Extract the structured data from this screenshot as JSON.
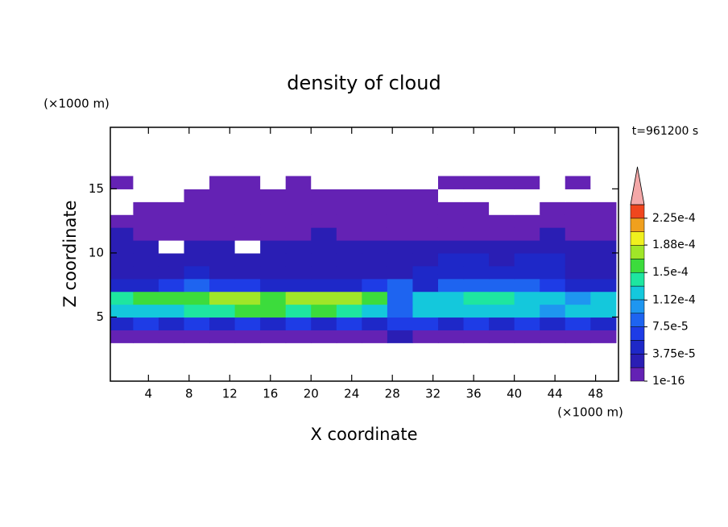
{
  "chart_data": {
    "type": "contour",
    "title": "density of cloud",
    "x_label": "X coordinate",
    "y_label": "Z coordinate",
    "x_unit": "(×1000 m)",
    "y_unit": "(×1000 m)",
    "time_label": "t=961200 s",
    "xlim": [
      0.25,
      50.25
    ],
    "ylim": [
      0,
      19.8
    ],
    "xticks": [
      4,
      8,
      12,
      16,
      20,
      24,
      28,
      32,
      36,
      40,
      44,
      48
    ],
    "yticks": [
      5,
      10,
      15
    ],
    "x": [
      1.25,
      3.75,
      6.25,
      8.75,
      11.25,
      13.75,
      16.25,
      18.75,
      21.25,
      23.75,
      26.25,
      28.75,
      31.25,
      33.75,
      36.25,
      38.75,
      41.25,
      43.75,
      46.25,
      48.75
    ],
    "z": [
      3.5,
      4.5,
      5.5,
      6.5,
      7.5,
      8.5,
      9.5,
      10.5,
      11.5,
      12.5,
      13.5,
      14.5,
      15.5
    ],
    "values": [
      [
        1.2e-05,
        1.5e-05,
        1.2e-05,
        1.5e-05,
        1.2e-05,
        1.5e-05,
        1.2e-05,
        1.5e-05,
        1.2e-05,
        1.5e-05,
        1.2e-05,
        2e-05,
        1.5e-05,
        1.2e-05,
        1.5e-05,
        1.2e-05,
        1.5e-05,
        1.2e-05,
        1.5e-05,
        1.2e-05
      ],
      [
        5e-05,
        6e-05,
        5.5e-05,
        6e-05,
        5e-05,
        6e-05,
        5.5e-05,
        6e-05,
        5e-05,
        6e-05,
        5.5e-05,
        7e-05,
        6e-05,
        5e-05,
        6e-05,
        5.5e-05,
        6e-05,
        5e-05,
        6e-05,
        5.5e-05
      ],
      [
        0.00013,
        0.00012,
        0.00013,
        0.00014,
        0.00014,
        0.00015,
        0.00015,
        0.00014,
        0.00015,
        0.00014,
        0.00013,
        9e-05,
        0.00012,
        0.00013,
        0.00012,
        0.00013,
        0.00012,
        0.00011,
        0.00012,
        0.00012
      ],
      [
        0.00014,
        0.00015,
        0.00016,
        0.00015,
        0.00017,
        0.00017,
        0.00016,
        0.00017,
        0.00018,
        0.00017,
        0.00015,
        8e-05,
        0.00012,
        0.00013,
        0.00014,
        0.00014,
        0.00013,
        0.00012,
        0.00011,
        0.00012
      ],
      [
        5e-05,
        5e-05,
        6e-05,
        9e-05,
        6e-05,
        6e-05,
        5e-05,
        5e-05,
        4.5e-05,
        5e-05,
        6e-05,
        8e-05,
        5e-05,
        8e-05,
        9e-05,
        9e-05,
        8e-05,
        6e-05,
        5e-05,
        5e-05
      ],
      [
        3e-05,
        3e-05,
        3e-05,
        4e-05,
        3e-05,
        3e-05,
        3e-05,
        3e-05,
        3e-05,
        3e-05,
        3e-05,
        3e-05,
        4e-05,
        4.5e-05,
        5e-05,
        5e-05,
        4.5e-05,
        4e-05,
        3e-05,
        3e-05
      ],
      [
        2.5e-05,
        2.5e-05,
        3e-05,
        3e-05,
        2.5e-05,
        2.5e-05,
        3e-05,
        2.5e-05,
        2.5e-05,
        2.5e-05,
        3e-05,
        3e-05,
        3e-05,
        4e-05,
        4e-05,
        3.5e-05,
        4e-05,
        4e-05,
        3e-05,
        2.5e-05
      ],
      [
        2e-05,
        2.5e-05,
        0,
        2e-05,
        2e-05,
        0,
        2e-05,
        2e-05,
        2e-05,
        2e-05,
        2e-05,
        2e-05,
        2.5e-05,
        2.5e-05,
        2.5e-05,
        2e-05,
        2.5e-05,
        3e-05,
        2.5e-05,
        2e-05
      ],
      [
        2e-05,
        1.5e-05,
        1.5e-05,
        1.5e-05,
        1.5e-05,
        1.5e-05,
        1.5e-05,
        1.5e-05,
        2e-05,
        1.5e-05,
        1.5e-05,
        1.5e-05,
        1.5e-05,
        1e-05,
        1e-05,
        1.5e-05,
        1.5e-05,
        2e-05,
        1.5e-05,
        1.5e-05
      ],
      [
        1e-05,
        1e-05,
        1e-05,
        1e-05,
        1e-05,
        1e-05,
        1e-05,
        1e-05,
        1e-05,
        1e-05,
        1e-05,
        1e-05,
        1e-05,
        1e-05,
        1e-05,
        1e-05,
        1e-05,
        1e-05,
        1e-05,
        1e-05
      ],
      [
        0,
        5e-06,
        5e-06,
        5e-06,
        5e-06,
        5e-06,
        5e-06,
        5e-06,
        5e-06,
        5e-06,
        5e-06,
        5e-06,
        5e-06,
        5e-06,
        5e-06,
        0,
        0,
        5e-06,
        5e-06,
        5e-06
      ],
      [
        0,
        0,
        0,
        5e-06,
        5e-06,
        5e-06,
        5e-06,
        5e-06,
        5e-06,
        5e-06,
        5e-06,
        5e-06,
        5e-06,
        0,
        0,
        0,
        0,
        0,
        0,
        0
      ],
      [
        5e-06,
        0,
        0,
        0,
        5e-06,
        5e-06,
        0,
        5e-06,
        0,
        0,
        0,
        0,
        0,
        5e-06,
        5e-06,
        5e-06,
        5e-06,
        0,
        5e-06,
        0
      ]
    ],
    "colorbar": {
      "levels": [
        1e-16,
        1.875e-05,
        3.75e-05,
        5.625e-05,
        7.5e-05,
        9.375e-05,
        0.0001125,
        0.00013125,
        0.00015,
        0.00016875,
        0.0001875,
        0.00020625,
        0.000225,
        0.00024375
      ],
      "colors": [
        "#6422b4",
        "#2a1eb4",
        "#1e28c8",
        "#1e3ce6",
        "#1e64f0",
        "#1e96f0",
        "#14c8dc",
        "#1ee6a0",
        "#3cdc3c",
        "#a0e628",
        "#f0f01e",
        "#f0a01e",
        "#f0461e"
      ],
      "extend_color": "#f4a8a8",
      "ticks": [
        {
          "value": 1e-16,
          "label": "1e-16"
        },
        {
          "value": 3.75e-05,
          "label": "3.75e-5"
        },
        {
          "value": 7.5e-05,
          "label": "7.5e-5"
        },
        {
          "value": 0.000112,
          "label": "1.12e-4"
        },
        {
          "value": 0.00015,
          "label": "1.5e-4"
        },
        {
          "value": 0.000188,
          "label": "1.88e-4"
        },
        {
          "value": 0.000225,
          "label": "2.25e-4"
        }
      ]
    }
  }
}
